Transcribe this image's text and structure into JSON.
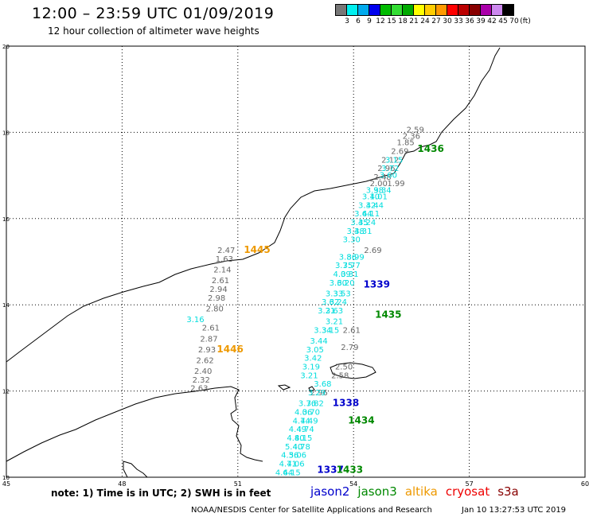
{
  "header": {
    "title": "12:00 – 23:59 UTC 01/09/2019",
    "subtitle": "12 hour collection of altimeter wave heights"
  },
  "legend": {
    "colors": [
      "#777777",
      "#00f0f0",
      "#00aaee",
      "#0000ee",
      "#00bb00",
      "#33dd33",
      "#00aa00",
      "#ffff00",
      "#ffcc00",
      "#ff9900",
      "#ff0000",
      "#bb0000",
      "#880000",
      "#aa00aa",
      "#cc88ee",
      "#000000"
    ],
    "labels": [
      "3",
      "6",
      "9",
      "12",
      "15",
      "18",
      "21",
      "24",
      "27",
      "30",
      "33",
      "36",
      "39",
      "42",
      "45",
      "70",
      "(ft)"
    ]
  },
  "map": {
    "lon_ticks": [
      "45",
      "48",
      "51",
      "54",
      "57",
      "60"
    ],
    "lat_ticks": [
      "20",
      "18",
      "16",
      "14",
      "12",
      "10"
    ],
    "pass_labels": [
      {
        "text": "1436",
        "color": "#008800",
        "lon": 56.0,
        "lat": 17.55
      },
      {
        "text": "1445",
        "color": "#ee9900",
        "lon": 51.5,
        "lat": 15.2
      },
      {
        "text": "1339",
        "color": "#0000cc",
        "lon": 54.6,
        "lat": 14.4
      },
      {
        "text": "1435",
        "color": "#008800",
        "lon": 54.9,
        "lat": 13.7
      },
      {
        "text": "1446",
        "color": "#ee9900",
        "lon": 50.8,
        "lat": 12.9
      },
      {
        "text": "1338",
        "color": "#0000cc",
        "lon": 53.8,
        "lat": 11.65
      },
      {
        "text": "1434",
        "color": "#008800",
        "lon": 54.2,
        "lat": 11.25
      },
      {
        "text": "1337",
        "color": "#0000cc",
        "lon": 53.4,
        "lat": 10.1
      },
      {
        "text": "1433",
        "color": "#008800",
        "lon": 53.9,
        "lat": 10.1
      }
    ],
    "gray_track": [
      {
        "v": "2.59",
        "lon": 55.6,
        "lat": 18.0
      },
      {
        "v": "2.36",
        "lon": 55.5,
        "lat": 17.85
      },
      {
        "v": "1.85",
        "lon": 55.35,
        "lat": 17.7
      },
      {
        "v": "2.69",
        "lon": 55.2,
        "lat": 17.5
      },
      {
        "v": "2.12",
        "lon": 54.95,
        "lat": 17.3
      },
      {
        "v": "2.96",
        "lon": 54.85,
        "lat": 17.1
      },
      {
        "v": "2.48",
        "lon": 54.75,
        "lat": 16.9
      },
      {
        "v": "2.00",
        "lon": 54.65,
        "lat": 16.75
      },
      {
        "v": "1.99",
        "lon": 55.1,
        "lat": 16.75
      },
      {
        "v": "2.69",
        "lon": 54.5,
        "lat": 15.2
      },
      {
        "v": "2.61",
        "lon": 53.95,
        "lat": 13.35
      },
      {
        "v": "2.79",
        "lon": 53.9,
        "lat": 12.95
      },
      {
        "v": "2.50",
        "lon": 53.75,
        "lat": 12.5
      },
      {
        "v": "2.58",
        "lon": 53.65,
        "lat": 12.3
      },
      {
        "v": "2.96",
        "lon": 53.1,
        "lat": 11.9
      },
      {
        "v": "2.47",
        "lon": 50.7,
        "lat": 15.2
      },
      {
        "v": "1.63",
        "lon": 50.65,
        "lat": 15.0
      },
      {
        "v": "2.14",
        "lon": 50.6,
        "lat": 14.75
      },
      {
        "v": "2.61",
        "lon": 50.55,
        "lat": 14.5
      },
      {
        "v": "2.94",
        "lon": 50.5,
        "lat": 14.3
      },
      {
        "v": "2.98",
        "lon": 50.45,
        "lat": 14.1
      },
      {
        "v": "2.80",
        "lon": 50.4,
        "lat": 13.85
      },
      {
        "v": "2.61",
        "lon": 50.3,
        "lat": 13.4
      },
      {
        "v": "2.87",
        "lon": 50.25,
        "lat": 13.15
      },
      {
        "v": "2.93",
        "lon": 50.2,
        "lat": 12.9
      },
      {
        "v": "2.62",
        "lon": 50.15,
        "lat": 12.65
      },
      {
        "v": "2.40",
        "lon": 50.1,
        "lat": 12.4
      },
      {
        "v": "2.32",
        "lon": 50.05,
        "lat": 12.2
      },
      {
        "v": "2.63",
        "lon": 50.0,
        "lat": 12.0
      }
    ],
    "cyan_track": [
      {
        "v": "3.15",
        "lon": 55.05,
        "lat": 17.3
      },
      {
        "v": "3.72",
        "lon": 54.95,
        "lat": 17.1
      },
      {
        "v": "3.60",
        "lon": 54.9,
        "lat": 16.95
      },
      {
        "v": "3.98",
        "lon": 54.55,
        "lat": 16.6
      },
      {
        "v": "3.34",
        "lon": 54.75,
        "lat": 16.6
      },
      {
        "v": "3.10",
        "lon": 54.45,
        "lat": 16.45
      },
      {
        "v": "4.01",
        "lon": 54.65,
        "lat": 16.45
      },
      {
        "v": "3.32",
        "lon": 54.35,
        "lat": 16.25
      },
      {
        "v": "4.44",
        "lon": 54.55,
        "lat": 16.25
      },
      {
        "v": "3.64",
        "lon": 54.25,
        "lat": 16.05
      },
      {
        "v": "4.11",
        "lon": 54.45,
        "lat": 16.05
      },
      {
        "v": "3.45",
        "lon": 54.15,
        "lat": 15.85
      },
      {
        "v": "3.24",
        "lon": 54.35,
        "lat": 15.85
      },
      {
        "v": "3.48",
        "lon": 54.05,
        "lat": 15.65
      },
      {
        "v": "3.31",
        "lon": 54.25,
        "lat": 15.65
      },
      {
        "v": "3.30",
        "lon": 53.95,
        "lat": 15.45
      },
      {
        "v": "3.86",
        "lon": 53.85,
        "lat": 15.05
      },
      {
        "v": "3.99",
        "lon": 54.05,
        "lat": 15.05
      },
      {
        "v": "3.75",
        "lon": 53.75,
        "lat": 14.85
      },
      {
        "v": "3.77",
        "lon": 53.95,
        "lat": 14.85
      },
      {
        "v": "4.09",
        "lon": 53.7,
        "lat": 14.65
      },
      {
        "v": "3.31",
        "lon": 53.9,
        "lat": 14.65
      },
      {
        "v": "3.60",
        "lon": 53.6,
        "lat": 14.45
      },
      {
        "v": "3.20",
        "lon": 53.8,
        "lat": 14.45
      },
      {
        "v": "3.33",
        "lon": 53.5,
        "lat": 14.2
      },
      {
        "v": "3.53",
        "lon": 53.7,
        "lat": 14.2
      },
      {
        "v": "3.62",
        "lon": 53.4,
        "lat": 14.0
      },
      {
        "v": "3.24",
        "lon": 53.6,
        "lat": 14.0
      },
      {
        "v": "3.21",
        "lon": 53.3,
        "lat": 13.8
      },
      {
        "v": "3.63",
        "lon": 53.5,
        "lat": 13.8
      },
      {
        "v": "3.21",
        "lon": 53.5,
        "lat": 13.55
      },
      {
        "v": "3.34",
        "lon": 53.2,
        "lat": 13.35
      },
      {
        "v": "3.15",
        "lon": 53.4,
        "lat": 13.35
      },
      {
        "v": "3.44",
        "lon": 53.1,
        "lat": 13.1
      },
      {
        "v": "3.05",
        "lon": 53.0,
        "lat": 12.9
      },
      {
        "v": "3.42",
        "lon": 52.95,
        "lat": 12.7
      },
      {
        "v": "3.19",
        "lon": 52.9,
        "lat": 12.5
      },
      {
        "v": "3.21",
        "lon": 52.85,
        "lat": 12.3
      },
      {
        "v": "3.68",
        "lon": 53.2,
        "lat": 12.1
      },
      {
        "v": "3.29",
        "lon": 53.05,
        "lat": 11.9
      },
      {
        "v": "3.76",
        "lon": 52.8,
        "lat": 11.65
      },
      {
        "v": "3.82",
        "lon": 53.0,
        "lat": 11.65
      },
      {
        "v": "4.06",
        "lon": 52.7,
        "lat": 11.45
      },
      {
        "v": "3.70",
        "lon": 52.9,
        "lat": 11.45
      },
      {
        "v": "4.74",
        "lon": 52.65,
        "lat": 11.25
      },
      {
        "v": "4.49",
        "lon": 52.85,
        "lat": 11.25
      },
      {
        "v": "4.49",
        "lon": 52.55,
        "lat": 11.05
      },
      {
        "v": "4.74",
        "lon": 52.75,
        "lat": 11.05
      },
      {
        "v": "4.80",
        "lon": 52.5,
        "lat": 10.85
      },
      {
        "v": "4.15",
        "lon": 52.7,
        "lat": 10.85
      },
      {
        "v": "5.40",
        "lon": 52.45,
        "lat": 10.65
      },
      {
        "v": "4.78",
        "lon": 52.65,
        "lat": 10.65
      },
      {
        "v": "4.36",
        "lon": 52.35,
        "lat": 10.45
      },
      {
        "v": "5.06",
        "lon": 52.55,
        "lat": 10.45
      },
      {
        "v": "4.71",
        "lon": 52.3,
        "lat": 10.25
      },
      {
        "v": "4.06",
        "lon": 52.5,
        "lat": 10.25
      },
      {
        "v": "4.64",
        "lon": 52.2,
        "lat": 10.05
      },
      {
        "v": "4.15",
        "lon": 52.4,
        "lat": 10.05
      },
      {
        "v": "3.16",
        "lon": 49.9,
        "lat": 13.6
      }
    ]
  },
  "footer": {
    "note": "note: 1) Time is in UTC; 2) SWH is in feet",
    "satellites": [
      {
        "name": "jason2",
        "color": "#0000cc"
      },
      {
        "name": "jason3",
        "color": "#008800"
      },
      {
        "name": "altika",
        "color": "#ee9900"
      },
      {
        "name": "cryosat",
        "color": "#ee0000"
      },
      {
        "name": "s3a",
        "color": "#880000"
      }
    ],
    "credit": "NOAA/NESDIS Center for Satellite Applications and Research",
    "timestamp": "Jan 10 13:27:53 UTC 2019"
  }
}
